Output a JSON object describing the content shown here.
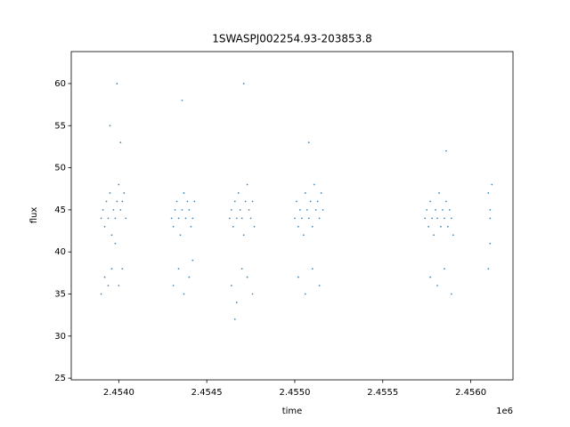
{
  "chart_data": {
    "type": "scatter",
    "title": "1SWASPJ002254.93-203853.8",
    "x_label": "time",
    "y_label": "flux",
    "x_offset_label": "1e6",
    "color": "#1f77b4",
    "xlim": [
      2.45373,
      2.45624
    ],
    "ylim": [
      24.8,
      63.8
    ],
    "xticks": [
      {
        "value": 2.454,
        "label": "2.4540"
      },
      {
        "value": 2.4545,
        "label": "2.4545"
      },
      {
        "value": 2.455,
        "label": "2.4550"
      },
      {
        "value": 2.4555,
        "label": "2.4555"
      },
      {
        "value": 2.456,
        "label": "2.4560"
      }
    ],
    "yticks": [
      25,
      30,
      35,
      40,
      45,
      50,
      55,
      60
    ],
    "x": [
      2.4539,
      2.45391,
      2.45392,
      2.45393,
      2.45394,
      2.45395,
      2.45396,
      2.45397,
      2.45398,
      2.45399,
      2.454,
      2.45401,
      2.45402,
      2.45403,
      2.45404,
      2.4539,
      2.45392,
      2.45394,
      2.45396,
      2.45398,
      2.454,
      2.45402,
      2.45395,
      2.45399,
      2.45401,
      2.4543,
      2.45431,
      2.45432,
      2.45433,
      2.45434,
      2.45435,
      2.45436,
      2.45437,
      2.45438,
      2.45439,
      2.4544,
      2.45441,
      2.45442,
      2.45443,
      2.45431,
      2.45434,
      2.45437,
      2.4544,
      2.45442,
      2.45436,
      2.45463,
      2.45464,
      2.45465,
      2.45466,
      2.45467,
      2.45468,
      2.45469,
      2.4547,
      2.45471,
      2.45472,
      2.45473,
      2.45474,
      2.45475,
      2.45476,
      2.45477,
      2.45464,
      2.45467,
      2.4547,
      2.45473,
      2.45476,
      2.45471,
      2.45466,
      2.455,
      2.45501,
      2.45502,
      2.45503,
      2.45504,
      2.45505,
      2.45506,
      2.45507,
      2.45508,
      2.45509,
      2.4551,
      2.45511,
      2.45512,
      2.45513,
      2.45514,
      2.45515,
      2.45516,
      2.45502,
      2.45506,
      2.4551,
      2.45514,
      2.45508,
      2.45574,
      2.45575,
      2.45576,
      2.45577,
      2.45578,
      2.45579,
      2.4558,
      2.45581,
      2.45582,
      2.45583,
      2.45584,
      2.45585,
      2.45586,
      2.45587,
      2.45588,
      2.45589,
      2.4559,
      2.45577,
      2.45581,
      2.45585,
      2.45589,
      2.45586,
      2.4561,
      2.45611,
      2.45611,
      2.45612,
      2.4561,
      2.45611
    ],
    "values": [
      44,
      45,
      43,
      46,
      44,
      47,
      42,
      45,
      44,
      46,
      48,
      45,
      46,
      47,
      44,
      35,
      37,
      36,
      38,
      41,
      36,
      38,
      55,
      60,
      53,
      44,
      43,
      45,
      46,
      44,
      42,
      45,
      47,
      44,
      46,
      45,
      43,
      44,
      46,
      36,
      38,
      35,
      37,
      39,
      58,
      44,
      45,
      43,
      46,
      44,
      47,
      45,
      44,
      42,
      46,
      48,
      45,
      44,
      46,
      43,
      36,
      34,
      38,
      37,
      35,
      60,
      32,
      44,
      46,
      43,
      45,
      44,
      42,
      47,
      45,
      44,
      46,
      43,
      48,
      45,
      46,
      44,
      47,
      45,
      37,
      35,
      38,
      36,
      53,
      44,
      45,
      43,
      46,
      44,
      42,
      45,
      44,
      47,
      43,
      45,
      44,
      46,
      43,
      45,
      44,
      42,
      37,
      36,
      38,
      35,
      52,
      47,
      45,
      44,
      48,
      38,
      41
    ]
  }
}
